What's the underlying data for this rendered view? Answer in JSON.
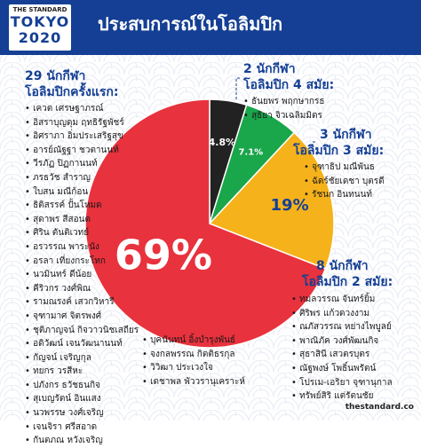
{
  "logo": {
    "top": "THE STANDARD",
    "line1": "TOKYO",
    "line2": "2020"
  },
  "title": "ประสบการณ์ในโอลิมปิก",
  "footer": "thestandard.co",
  "colors": {
    "header": "#143f94",
    "red": "#e8323d",
    "yellow": "#f6b21b",
    "green": "#1aa64b",
    "black": "#222222"
  },
  "chart_data": {
    "type": "pie",
    "slices": [
      {
        "label": "4.8%",
        "value": 4.8,
        "color": "#222222"
      },
      {
        "label": "7.1%",
        "value": 7.1,
        "color": "#1aa64b"
      },
      {
        "label": "19%",
        "value": 19,
        "color": "#f6b21b"
      },
      {
        "label": "69%",
        "value": 69,
        "color": "#e8323d"
      }
    ]
  },
  "groups": {
    "first": {
      "title1": "29 นักกีฬา",
      "title2": "โอลิมปิกครั้งแรก:",
      "names_left": [
        "เควต เศรษฐาภรณ์",
        "อิสราบุญดุม ฤทธิรัฐพัชร์",
        "อิศราภา อิ่มประเสริฐสุข",
        "อารย์ณัฐฐา ชวตานนท์",
        "วีรภัฏ ปิฏกานนท์",
        "ภรธวัช สำราญ",
        "ใบสน มณีก้อน",
        "ธิติสรรค์ ปั้นโหมด",
        "สุดาพร สีสอนด",
        "ศิริน ตันติเวทย์",
        "อรวรรณ พาระนัง",
        "อรลา เที่ยงกระโทก",
        "นวมินทร์ ดีน้อย",
        "คีริวกร วงศ์พิณ",
        "รามณรงค์ เสวกวิหารี",
        "จุฑามาศ จิตรพงศ์",
        "ชุติภาญจน์ กิจวาวนิชเสถียร",
        "อดิวัฒน์ เจนวัฒนานนท์",
        "กัญจน์ เจริญกุล",
        "ทยกร วรสีหะ",
        "ปภังกร ธวัชธนกิจ",
        "สุเบญรัตน์ อินแสง",
        "นวพรรษ วงศ์เจริญ",
        "เจนจิรา ศรีสอาด",
        "กันตภณ หวังเจริญ"
      ],
      "names_mid": [
        "บุคนันทน์ อิ้งบำรุงพันธ์",
        "จงกลพรรณ กิตติธรกุล",
        "วิวิฒา ประเวงใจ",
        "เดชาพล พัววรานุเคราะห์"
      ]
    },
    "four": {
      "title1": "2 นักกีฬา",
      "title2": "โอลิมปิก 4 สมัย:",
      "names": [
        "ธันยพร พฤกษากรธ",
        "สุธิยา จิวเฉลิมมิตร"
      ]
    },
    "three": {
      "title1": "3 นักกีฬา",
      "title2": "โอลิมปิก 3 สมัย:",
      "names": [
        "จุฑาธิป มณีพันธ",
        "ฉัตร์ชัยเดชา บุตรดี",
        "รัชนก อินทนนท์"
      ]
    },
    "two": {
      "title1": "8 นักกีฬา",
      "title2": "โอลิมปิก 2 สมัย:",
      "names": [
        "ทมลวรรณ จันทร์ยิ้ม",
        "ศิริพร แก้วดวงงาม",
        "ณภัสวรรณ หย่างไพบูลย์",
        "พาณิภัค วงศ์พัฒนกิจ",
        "สุธาสินี เสวตรบุตร",
        "ณัฐพงษ์ โพธิ์นพรัตน์",
        "โปรเม-เอริยา จุฑานุกาล",
        "ทรัพย์สิริ แต่รัตนชัย"
      ]
    }
  }
}
